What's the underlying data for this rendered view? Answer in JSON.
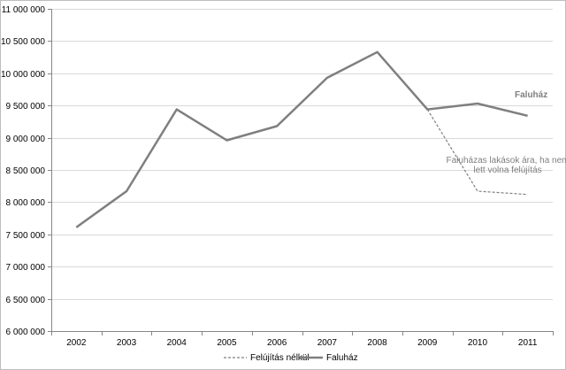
{
  "chart_data": {
    "type": "line",
    "title": "",
    "xlabel": "",
    "ylabel": "",
    "categories": [
      "2002",
      "2003",
      "2004",
      "2005",
      "2006",
      "2007",
      "2008",
      "2009",
      "2010",
      "2011"
    ],
    "ylim": [
      6000000,
      11000000
    ],
    "y_ticks": [
      "6 000 000",
      "6 500 000",
      "7 000 000",
      "7 500 000",
      "8 000 000",
      "8 500 000",
      "9 000 000",
      "9 500 000",
      "10 000 000",
      "10 500 000",
      "11 000 000"
    ],
    "y_tick_values": [
      6000000,
      6500000,
      7000000,
      7500000,
      8000000,
      8500000,
      9000000,
      9500000,
      10000000,
      10500000,
      11000000
    ],
    "grid": true,
    "legend_position": "bottom",
    "series": [
      {
        "name": "Felújítás nélkül",
        "style": "dashed",
        "color": "#7f7f7f",
        "values": [
          null,
          null,
          null,
          null,
          null,
          null,
          null,
          9440000,
          8170000,
          8120000
        ]
      },
      {
        "name": "Faluház",
        "style": "solid",
        "color": "#7f7f7f",
        "values": [
          7610000,
          8170000,
          9440000,
          8960000,
          9180000,
          9930000,
          10330000,
          9440000,
          9530000,
          9340000
        ]
      }
    ],
    "annotations": [
      {
        "text": "Faluház",
        "bold": true
      },
      {
        "text_lines": [
          "Faluházas lakások ára, ha nem",
          "lett volna felújítás"
        ],
        "bold": false
      }
    ]
  }
}
